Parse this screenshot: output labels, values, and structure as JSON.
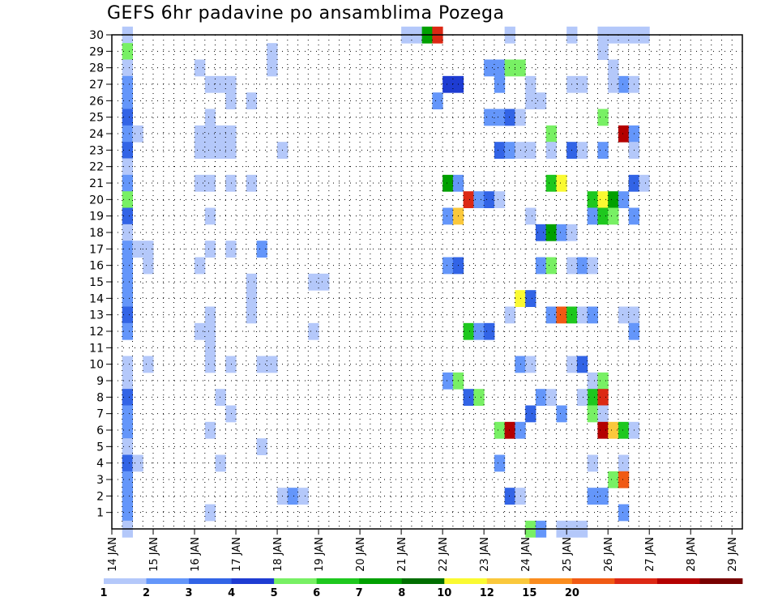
{
  "chart_data": {
    "type": "heatmap",
    "title": "GEFS 6hr padavine po ansamblima Pozega",
    "xlabel": "",
    "ylabel": "",
    "x_tick_labels": [
      "14 JAN",
      "15 JAN",
      "16 JAN",
      "17 JAN",
      "18 JAN",
      "19 JAN",
      "20 JAN",
      "21 JAN",
      "22 JAN",
      "23 JAN",
      "24 JAN",
      "25 JAN",
      "26 JAN",
      "27 JAN",
      "28 JAN",
      "29 JAN"
    ],
    "x_range_days": [
      14.0,
      29.25
    ],
    "y_tick_labels": [
      1,
      2,
      3,
      4,
      5,
      6,
      7,
      8,
      9,
      10,
      11,
      12,
      13,
      14,
      15,
      16,
      17,
      18,
      19,
      20,
      21,
      22,
      23,
      24,
      25,
      26,
      27,
      28,
      29,
      30
    ],
    "y_range": [
      0,
      30
    ],
    "grid": true,
    "colorbar": {
      "ticks": [
        "1",
        "2",
        "3",
        "4",
        "5",
        "6",
        "7",
        "8",
        "10",
        "12",
        "15",
        "20"
      ],
      "colors": [
        "#b4c8fa",
        "#6496fa",
        "#3264e6",
        "#1e3cd2",
        "#78f064",
        "#1ec81e",
        "#00a000",
        "#006e00",
        "#fafa32",
        "#fac83c",
        "#fa8c1e",
        "#f05a14",
        "#dc2814",
        "#b40000",
        "#780000"
      ]
    },
    "cells": [
      {
        "day": 14.25,
        "member": 30,
        "level": 1
      },
      {
        "day": 14.25,
        "member": 29,
        "level": 5
      },
      {
        "day": 14.25,
        "member": 28,
        "level": 1
      },
      {
        "day": 14.25,
        "member": 27,
        "level": 2
      },
      {
        "day": 14.25,
        "member": 26,
        "level": 2
      },
      {
        "day": 14.25,
        "member": 25,
        "level": 3
      },
      {
        "day": 14.25,
        "member": 24,
        "level": 2
      },
      {
        "day": 14.5,
        "member": 24,
        "level": 1
      },
      {
        "day": 14.25,
        "member": 23,
        "level": 3
      },
      {
        "day": 14.25,
        "member": 22,
        "level": 1
      },
      {
        "day": 14.25,
        "member": 21,
        "level": 2
      },
      {
        "day": 14.25,
        "member": 20,
        "level": 5
      },
      {
        "day": 14.25,
        "member": 19,
        "level": 3
      },
      {
        "day": 14.25,
        "member": 18,
        "level": 1
      },
      {
        "day": 14.25,
        "member": 17,
        "level": 2
      },
      {
        "day": 14.5,
        "member": 17,
        "level": 1
      },
      {
        "day": 14.75,
        "member": 17,
        "level": 1
      },
      {
        "day": 14.25,
        "member": 16,
        "level": 2
      },
      {
        "day": 14.75,
        "member": 16,
        "level": 1
      },
      {
        "day": 14.25,
        "member": 15,
        "level": 2
      },
      {
        "day": 14.25,
        "member": 14,
        "level": 2
      },
      {
        "day": 14.25,
        "member": 13,
        "level": 3
      },
      {
        "day": 14.25,
        "member": 12,
        "level": 2
      },
      {
        "day": 14.25,
        "member": 10,
        "level": 1
      },
      {
        "day": 14.75,
        "member": 10,
        "level": 1
      },
      {
        "day": 14.25,
        "member": 9,
        "level": 1
      },
      {
        "day": 14.25,
        "member": 8,
        "level": 3
      },
      {
        "day": 14.25,
        "member": 7,
        "level": 2
      },
      {
        "day": 14.25,
        "member": 6,
        "level": 2
      },
      {
        "day": 14.25,
        "member": 5,
        "level": 1
      },
      {
        "day": 14.25,
        "member": 4,
        "level": 3
      },
      {
        "day": 14.5,
        "member": 4,
        "level": 1
      },
      {
        "day": 14.25,
        "member": 3,
        "level": 2
      },
      {
        "day": 14.25,
        "member": 2,
        "level": 2
      },
      {
        "day": 14.25,
        "member": 1,
        "level": 2
      },
      {
        "day": 14.25,
        "member": 0,
        "level": 1
      },
      {
        "day": 16.0,
        "member": 28,
        "level": 1
      },
      {
        "day": 16.25,
        "member": 27,
        "level": 1
      },
      {
        "day": 16.5,
        "member": 27,
        "level": 1
      },
      {
        "day": 16.75,
        "member": 27,
        "level": 1
      },
      {
        "day": 16.75,
        "member": 26,
        "level": 1
      },
      {
        "day": 17.25,
        "member": 26,
        "level": 1
      },
      {
        "day": 16.25,
        "member": 25,
        "level": 1
      },
      {
        "day": 16.0,
        "member": 24,
        "level": 1
      },
      {
        "day": 16.25,
        "member": 24,
        "level": 1
      },
      {
        "day": 16.5,
        "member": 24,
        "level": 1
      },
      {
        "day": 16.75,
        "member": 24,
        "level": 1
      },
      {
        "day": 16.0,
        "member": 23,
        "level": 1
      },
      {
        "day": 16.25,
        "member": 23,
        "level": 1
      },
      {
        "day": 16.5,
        "member": 23,
        "level": 1
      },
      {
        "day": 16.75,
        "member": 23,
        "level": 1
      },
      {
        "day": 16.0,
        "member": 21,
        "level": 1
      },
      {
        "day": 16.25,
        "member": 21,
        "level": 1
      },
      {
        "day": 16.75,
        "member": 21,
        "level": 1
      },
      {
        "day": 17.25,
        "member": 21,
        "level": 1
      },
      {
        "day": 16.25,
        "member": 19,
        "level": 1
      },
      {
        "day": 16.25,
        "member": 17,
        "level": 1
      },
      {
        "day": 16.75,
        "member": 17,
        "level": 1
      },
      {
        "day": 17.5,
        "member": 17,
        "level": 2
      },
      {
        "day": 16.0,
        "member": 16,
        "level": 1
      },
      {
        "day": 17.25,
        "member": 15,
        "level": 1
      },
      {
        "day": 17.25,
        "member": 14,
        "level": 1
      },
      {
        "day": 16.25,
        "member": 13,
        "level": 1
      },
      {
        "day": 17.25,
        "member": 13,
        "level": 1
      },
      {
        "day": 16.0,
        "member": 12,
        "level": 1
      },
      {
        "day": 16.25,
        "member": 12,
        "level": 1
      },
      {
        "day": 16.25,
        "member": 11,
        "level": 1
      },
      {
        "day": 16.25,
        "member": 10,
        "level": 1
      },
      {
        "day": 16.75,
        "member": 10,
        "level": 1
      },
      {
        "day": 17.5,
        "member": 10,
        "level": 1
      },
      {
        "day": 17.75,
        "member": 10,
        "level": 1
      },
      {
        "day": 16.5,
        "member": 8,
        "level": 1
      },
      {
        "day": 16.75,
        "member": 7,
        "level": 1
      },
      {
        "day": 16.25,
        "member": 6,
        "level": 1
      },
      {
        "day": 17.5,
        "member": 5,
        "level": 1
      },
      {
        "day": 16.5,
        "member": 4,
        "level": 1
      },
      {
        "day": 16.25,
        "member": 1,
        "level": 1
      },
      {
        "day": 17.75,
        "member": 29,
        "level": 1
      },
      {
        "day": 17.75,
        "member": 28,
        "level": 1
      },
      {
        "day": 18.0,
        "member": 23,
        "level": 1
      },
      {
        "day": 18.75,
        "member": 15,
        "level": 1
      },
      {
        "day": 19.0,
        "member": 15,
        "level": 1
      },
      {
        "day": 18.75,
        "member": 12,
        "level": 1
      },
      {
        "day": 18.0,
        "member": 2,
        "level": 1
      },
      {
        "day": 18.25,
        "member": 2,
        "level": 2
      },
      {
        "day": 18.5,
        "member": 2,
        "level": 1
      },
      {
        "day": 21.0,
        "member": 30,
        "level": 1
      },
      {
        "day": 21.25,
        "member": 30,
        "level": 1
      },
      {
        "day": 21.5,
        "member": 30,
        "level": 7
      },
      {
        "day": 21.75,
        "member": 30,
        "level": 13
      },
      {
        "day": 22.0,
        "member": 27,
        "level": 4
      },
      {
        "day": 22.25,
        "member": 27,
        "level": 4
      },
      {
        "day": 21.75,
        "member": 26,
        "level": 2
      },
      {
        "day": 22.0,
        "member": 21,
        "level": 7
      },
      {
        "day": 22.25,
        "member": 21,
        "level": 2
      },
      {
        "day": 22.5,
        "member": 20,
        "level": 13
      },
      {
        "day": 22.75,
        "member": 20,
        "level": 2
      },
      {
        "day": 23.0,
        "member": 20,
        "level": 3
      },
      {
        "day": 23.25,
        "member": 20,
        "level": 1
      },
      {
        "day": 22.0,
        "member": 19,
        "level": 2
      },
      {
        "day": 22.25,
        "member": 19,
        "level": 10
      },
      {
        "day": 22.0,
        "member": 16,
        "level": 2
      },
      {
        "day": 22.25,
        "member": 16,
        "level": 3
      },
      {
        "day": 22.5,
        "member": 12,
        "level": 6
      },
      {
        "day": 22.75,
        "member": 12,
        "level": 2
      },
      {
        "day": 23.0,
        "member": 12,
        "level": 3
      },
      {
        "day": 22.0,
        "member": 9,
        "level": 2
      },
      {
        "day": 22.25,
        "member": 9,
        "level": 5
      },
      {
        "day": 22.5,
        "member": 8,
        "level": 3
      },
      {
        "day": 22.75,
        "member": 8,
        "level": 5
      },
      {
        "day": 23.0,
        "member": 28,
        "level": 2
      },
      {
        "day": 23.25,
        "member": 28,
        "level": 2
      },
      {
        "day": 23.5,
        "member": 28,
        "level": 5
      },
      {
        "day": 23.75,
        "member": 28,
        "level": 5
      },
      {
        "day": 23.25,
        "member": 27,
        "level": 2
      },
      {
        "day": 23.0,
        "member": 25,
        "level": 2
      },
      {
        "day": 23.25,
        "member": 25,
        "level": 2
      },
      {
        "day": 23.5,
        "member": 25,
        "level": 3
      },
      {
        "day": 23.75,
        "member": 25,
        "level": 1
      },
      {
        "day": 23.25,
        "member": 23,
        "level": 3
      },
      {
        "day": 23.5,
        "member": 23,
        "level": 2
      },
      {
        "day": 23.75,
        "member": 23,
        "level": 1
      },
      {
        "day": 24.0,
        "member": 23,
        "level": 1
      },
      {
        "day": 23.5,
        "member": 30,
        "level": 1
      },
      {
        "day": 23.25,
        "member": 6,
        "level": 5
      },
      {
        "day": 23.5,
        "member": 6,
        "level": 14
      },
      {
        "day": 23.75,
        "member": 6,
        "level": 2
      },
      {
        "day": 23.5,
        "member": 13,
        "level": 1
      },
      {
        "day": 23.75,
        "member": 14,
        "level": 9
      },
      {
        "day": 23.5,
        "member": 2,
        "level": 3
      },
      {
        "day": 23.75,
        "member": 2,
        "level": 1
      },
      {
        "day": 23.25,
        "member": 4,
        "level": 2
      },
      {
        "day": 24.0,
        "member": 27,
        "level": 1
      },
      {
        "day": 24.0,
        "member": 26,
        "level": 1
      },
      {
        "day": 24.25,
        "member": 26,
        "level": 1
      },
      {
        "day": 24.5,
        "member": 24,
        "level": 5
      },
      {
        "day": 24.5,
        "member": 23,
        "level": 1
      },
      {
        "day": 24.5,
        "member": 21,
        "level": 6
      },
      {
        "day": 24.75,
        "member": 21,
        "level": 9
      },
      {
        "day": 24.0,
        "member": 19,
        "level": 1
      },
      {
        "day": 24.25,
        "member": 18,
        "level": 3
      },
      {
        "day": 24.5,
        "member": 18,
        "level": 7
      },
      {
        "day": 24.75,
        "member": 18,
        "level": 2
      },
      {
        "day": 25.0,
        "member": 18,
        "level": 1
      },
      {
        "day": 24.25,
        "member": 16,
        "level": 2
      },
      {
        "day": 24.5,
        "member": 16,
        "level": 5
      },
      {
        "day": 24.0,
        "member": 14,
        "level": 3
      },
      {
        "day": 24.5,
        "member": 13,
        "level": 2
      },
      {
        "day": 24.75,
        "member": 13,
        "level": 12
      },
      {
        "day": 25.0,
        "member": 13,
        "level": 6
      },
      {
        "day": 25.25,
        "member": 13,
        "level": 1
      },
      {
        "day": 25.5,
        "member": 13,
        "level": 2
      },
      {
        "day": 23.75,
        "member": 10,
        "level": 2
      },
      {
        "day": 24.0,
        "member": 10,
        "level": 1
      },
      {
        "day": 24.25,
        "member": 8,
        "level": 2
      },
      {
        "day": 24.5,
        "member": 8,
        "level": 1
      },
      {
        "day": 24.0,
        "member": 7,
        "level": 3
      },
      {
        "day": 24.75,
        "member": 7,
        "level": 2
      },
      {
        "day": 24.0,
        "member": 0,
        "level": 5
      },
      {
        "day": 24.25,
        "member": 0,
        "level": 2
      },
      {
        "day": 24.75,
        "member": 0,
        "level": 1
      },
      {
        "day": 25.0,
        "member": 0,
        "level": 1
      },
      {
        "day": 25.25,
        "member": 0,
        "level": 1
      },
      {
        "day": 25.0,
        "member": 30,
        "level": 1
      },
      {
        "day": 25.0,
        "member": 27,
        "level": 1
      },
      {
        "day": 25.25,
        "member": 27,
        "level": 1
      },
      {
        "day": 25.0,
        "member": 23,
        "level": 3
      },
      {
        "day": 25.25,
        "member": 23,
        "level": 1
      },
      {
        "day": 25.0,
        "member": 16,
        "level": 1
      },
      {
        "day": 25.25,
        "member": 16,
        "level": 2
      },
      {
        "day": 25.5,
        "member": 16,
        "level": 1
      },
      {
        "day": 25.0,
        "member": 10,
        "level": 1
      },
      {
        "day": 25.25,
        "member": 10,
        "level": 3
      },
      {
        "day": 25.5,
        "member": 9,
        "level": 1
      },
      {
        "day": 25.75,
        "member": 9,
        "level": 5
      },
      {
        "day": 25.5,
        "member": 8,
        "level": 6
      },
      {
        "day": 25.75,
        "member": 8,
        "level": 13
      },
      {
        "day": 25.25,
        "member": 8,
        "level": 1
      },
      {
        "day": 25.5,
        "member": 7,
        "level": 5
      },
      {
        "day": 25.75,
        "member": 7,
        "level": 1
      },
      {
        "day": 25.5,
        "member": 4,
        "level": 1
      },
      {
        "day": 25.5,
        "member": 2,
        "level": 2
      },
      {
        "day": 25.75,
        "member": 2,
        "level": 2
      },
      {
        "day": 25.75,
        "member": 30,
        "level": 1
      },
      {
        "day": 26.0,
        "member": 30,
        "level": 1
      },
      {
        "day": 26.25,
        "member": 30,
        "level": 1
      },
      {
        "day": 26.5,
        "member": 30,
        "level": 1
      },
      {
        "day": 26.75,
        "member": 30,
        "level": 1
      },
      {
        "day": 25.75,
        "member": 29,
        "level": 1
      },
      {
        "day": 26.0,
        "member": 28,
        "level": 1
      },
      {
        "day": 26.25,
        "member": 27,
        "level": 2
      },
      {
        "day": 26.5,
        "member": 27,
        "level": 1
      },
      {
        "day": 26.0,
        "member": 27,
        "level": 1
      },
      {
        "day": 25.75,
        "member": 25,
        "level": 5
      },
      {
        "day": 26.25,
        "member": 24,
        "level": 14
      },
      {
        "day": 26.5,
        "member": 24,
        "level": 2
      },
      {
        "day": 25.75,
        "member": 23,
        "level": 2
      },
      {
        "day": 26.5,
        "member": 23,
        "level": 1
      },
      {
        "day": 26.5,
        "member": 21,
        "level": 3
      },
      {
        "day": 26.75,
        "member": 21,
        "level": 1
      },
      {
        "day": 25.5,
        "member": 20,
        "level": 6
      },
      {
        "day": 25.75,
        "member": 20,
        "level": 9
      },
      {
        "day": 26.0,
        "member": 20,
        "level": 7
      },
      {
        "day": 26.25,
        "member": 20,
        "level": 2
      },
      {
        "day": 25.5,
        "member": 19,
        "level": 2
      },
      {
        "day": 25.75,
        "member": 19,
        "level": 6
      },
      {
        "day": 26.0,
        "member": 19,
        "level": 5
      },
      {
        "day": 26.5,
        "member": 19,
        "level": 2
      },
      {
        "day": 26.25,
        "member": 13,
        "level": 1
      },
      {
        "day": 26.5,
        "member": 13,
        "level": 1
      },
      {
        "day": 26.5,
        "member": 12,
        "level": 2
      },
      {
        "day": 25.75,
        "member": 6,
        "level": 14
      },
      {
        "day": 26.0,
        "member": 6,
        "level": 10
      },
      {
        "day": 26.25,
        "member": 6,
        "level": 6
      },
      {
        "day": 26.5,
        "member": 6,
        "level": 1
      },
      {
        "day": 26.25,
        "member": 4,
        "level": 1
      },
      {
        "day": 26.0,
        "member": 3,
        "level": 5
      },
      {
        "day": 26.25,
        "member": 3,
        "level": 12
      },
      {
        "day": 26.25,
        "member": 1,
        "level": 2
      }
    ]
  }
}
